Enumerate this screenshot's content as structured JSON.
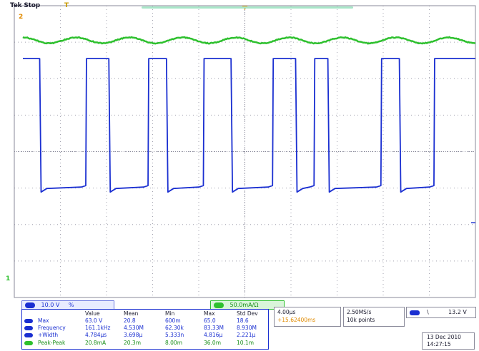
{
  "header": {
    "status": "Tek Stop",
    "trigger_icon": "T"
  },
  "markers": {
    "ch2_ground": "2",
    "ch1_ground": "1"
  },
  "channels": {
    "ch1": {
      "label": "1",
      "scale": "10.0 V",
      "coupling": "%",
      "color": "#1a2fd1"
    },
    "ch2": {
      "label": "2",
      "scale": "50.0mA/Ω",
      "color": "#2ec02e"
    }
  },
  "measurements": {
    "headers": [
      "",
      "Value",
      "Mean",
      "Min",
      "Max",
      "Std Dev"
    ],
    "rows": [
      {
        "channel": "1",
        "name": "Max",
        "value": "63.0 V",
        "mean": "20.8",
        "min": "600m",
        "max": "65.0",
        "std": "18.6"
      },
      {
        "channel": "1",
        "name": "Frequency",
        "value": "161.1kHz",
        "mean": "4.530M",
        "min": "62.30k",
        "max": "83.33M",
        "std": "8.930M"
      },
      {
        "channel": "1",
        "name": "+Width",
        "value": "4.784μs",
        "mean": "3.698μ",
        "min": "5.333n",
        "max": "4.816μ",
        "std": "2.221μ"
      },
      {
        "channel": "2",
        "name": "Peak-Peak",
        "value": "20.8mA",
        "mean": "20.3m",
        "min": "8.00m",
        "max": "36.0m",
        "std": "10.1m"
      }
    ]
  },
  "timebase": {
    "scale": "4.00μs",
    "delay": "+15.62400ms"
  },
  "acquisition": {
    "rate": "2.50MS/s",
    "points": "10k points"
  },
  "trigger": {
    "source": "1",
    "slope": "\\",
    "level": "13.2 V"
  },
  "timestamp": {
    "date": "13 Dec 2010",
    "time": "14:27:15"
  },
  "waveform_colors": {
    "ch1": "#1a2fd1",
    "ch2": "#2ec02e",
    "grid": "#8a8a9a",
    "marker": "#e08a00"
  },
  "chart_data": {
    "type": "line",
    "grid": true,
    "divisions": {
      "x": 10,
      "y": 8
    },
    "series": [
      {
        "name": "1",
        "waveform": "pulse",
        "high_div": 2.55,
        "low_div": -1.05,
        "pulse_edges_div": [
          [
            0.55,
            1.55
          ],
          [
            2.05,
            2.9
          ],
          [
            3.3,
            4.1
          ],
          [
            4.7,
            5.6
          ],
          [
            6.1,
            6.5
          ],
          [
            6.8,
            7.95
          ],
          [
            8.35,
            9.1
          ]
        ]
      },
      {
        "name": "2",
        "waveform": "ripple",
        "center_div": 3.05,
        "ripple_amplitude_div": 0.08,
        "ripple_periods": 8.5
      }
    ]
  }
}
